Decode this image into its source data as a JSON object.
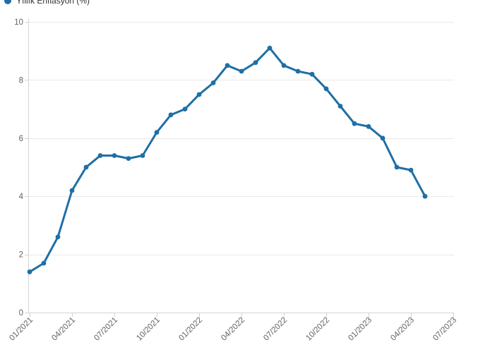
{
  "legend": {
    "label": "Yıllık Enflasyon (%)"
  },
  "chart_data": {
    "type": "line",
    "title": "",
    "xlabel": "",
    "ylabel": "",
    "legend_position": "top-left",
    "grid": "horizontal",
    "ylim": [
      0,
      10
    ],
    "y_ticks": [
      0,
      2,
      4,
      6,
      8,
      10
    ],
    "x_domain": [
      "01/2021",
      "07/2023"
    ],
    "x_tick_labels": [
      "01/2021",
      "04/2021",
      "07/2021",
      "10/2021",
      "01/2022",
      "04/2022",
      "07/2022",
      "10/2022",
      "01/2023",
      "04/2023",
      "07/2023"
    ],
    "series": [
      {
        "name": "Yıllık Enflasyon (%)",
        "color": "#1f6fa5",
        "x": [
          "01/2021",
          "02/2021",
          "03/2021",
          "04/2021",
          "05/2021",
          "06/2021",
          "07/2021",
          "08/2021",
          "09/2021",
          "10/2021",
          "11/2021",
          "12/2021",
          "01/2022",
          "02/2022",
          "03/2022",
          "04/2022",
          "05/2022",
          "06/2022",
          "07/2022",
          "08/2022",
          "09/2022",
          "10/2022",
          "11/2022",
          "12/2022",
          "01/2023",
          "02/2023",
          "03/2023",
          "04/2023",
          "05/2023"
        ],
        "values": [
          1.4,
          1.7,
          2.6,
          4.2,
          5.0,
          5.4,
          5.4,
          5.3,
          5.4,
          6.2,
          6.8,
          7.0,
          7.5,
          7.9,
          8.5,
          8.3,
          8.6,
          9.1,
          8.5,
          8.3,
          8.2,
          7.7,
          7.1,
          6.5,
          6.4,
          6.0,
          5.0,
          4.9,
          4.0
        ]
      }
    ],
    "colors": {
      "line": "#1f6fa5",
      "grid": "#e9e9e9",
      "axis": "#d3d3d3",
      "tick_label": "#636363",
      "legend_text": "#333333"
    }
  }
}
